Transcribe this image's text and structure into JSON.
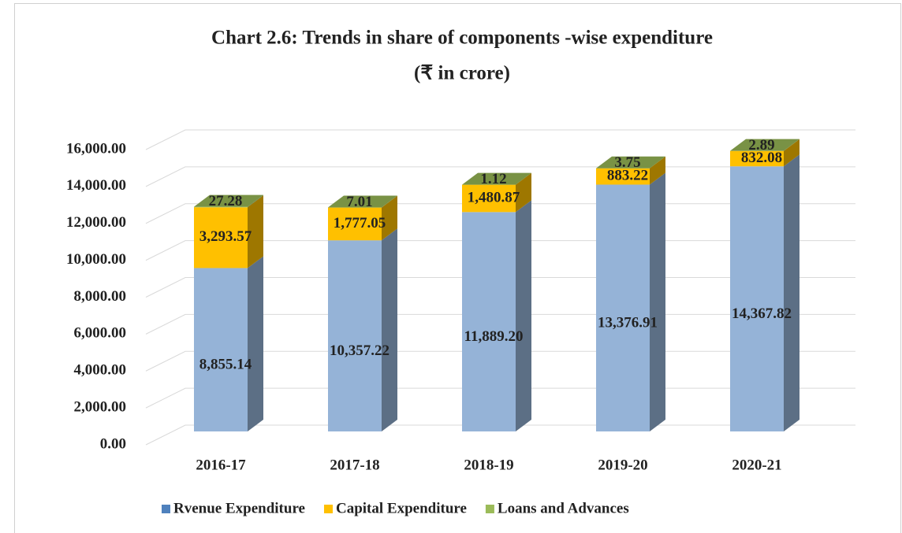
{
  "chart_data": {
    "type": "bar3d_stacked",
    "title": "Chart 2.6: Trends in share of  components -wise expenditure",
    "subtitle": "(₹ in crore)",
    "categories": [
      "2016-17",
      "2017-18",
      "2018-19",
      "2019-20",
      "2020-21"
    ],
    "series": [
      {
        "name": "Rvenue Expenditure",
        "color": "#95b3d7",
        "values": [
          8855.14,
          10357.22,
          11889.2,
          13376.91,
          14367.82
        ],
        "value_labels": [
          "8,855.14",
          "10,357.22",
          "11,889.20",
          "13,376.91",
          "14,367.82"
        ]
      },
      {
        "name": "Capital Expenditure",
        "color": "#ffc000",
        "values": [
          3293.57,
          1777.05,
          1480.87,
          883.22,
          832.08
        ],
        "value_labels": [
          "3,293.57",
          "1,777.05",
          "1,480.87",
          "883.22",
          "832.08"
        ]
      },
      {
        "name": "Loans and Advances",
        "color": "#9bbb59",
        "values": [
          27.28,
          7.01,
          1.12,
          3.75,
          2.89
        ],
        "value_labels": [
          "27.28",
          "7.01",
          "1.12",
          "3.75",
          "2.89"
        ]
      }
    ],
    "ylim": [
      0,
      16000
    ],
    "yticks": [
      {
        "value": 0,
        "label": "0.00"
      },
      {
        "value": 2000,
        "label": "2,000.00"
      },
      {
        "value": 4000,
        "label": "4,000.00"
      },
      {
        "value": 6000,
        "label": "6,000.00"
      },
      {
        "value": 8000,
        "label": "8,000.00"
      },
      {
        "value": 10000,
        "label": "10,000.00"
      },
      {
        "value": 12000,
        "label": "12,000.00"
      },
      {
        "value": 14000,
        "label": "14,000.00"
      },
      {
        "value": 16000,
        "label": "16,000.00"
      }
    ],
    "grid": true,
    "legend": "bottom"
  }
}
